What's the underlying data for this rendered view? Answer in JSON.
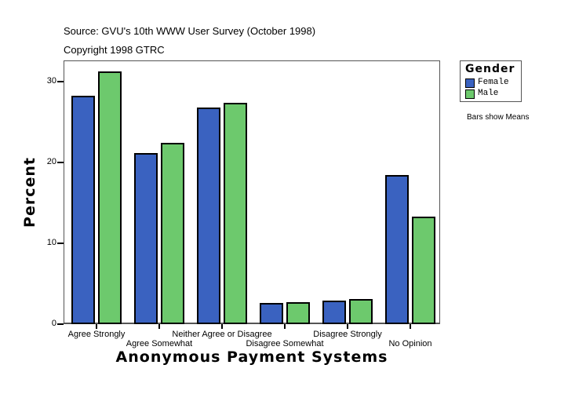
{
  "header": {
    "source": "Source: GVU's 10th WWW User Survey (October 1998)",
    "copyright": "Copyright 1998 GTRC"
  },
  "legend": {
    "title": "Gender",
    "items": [
      {
        "label": "Female",
        "color": "#3a62c0"
      },
      {
        "label": "Male",
        "color": "#6dc96d"
      }
    ],
    "note": "Bars show Means"
  },
  "axes": {
    "ylabel": "Percent",
    "xlabel": "Anonymous Payment Systems",
    "yticks": [
      "0",
      "10",
      "20",
      "30"
    ]
  },
  "chart_data": {
    "type": "bar",
    "title": "",
    "subtitle": "Source: GVU's 10th WWW User Survey (October 1998) / Copyright 1998 GTRC",
    "xlabel": "Anonymous Payment Systems",
    "ylabel": "Percent",
    "ylim": [
      0,
      32.6
    ],
    "yticks": [
      0,
      10,
      20,
      30
    ],
    "grid": false,
    "legend_position": "right",
    "legend_title": "Gender",
    "annotation": "Bars show Means",
    "categories": [
      "Agree Strongly",
      "Agree Somewhat",
      "Neither Agree or Disagree",
      "Disagree Somewhat",
      "Disagree Strongly",
      "No Opinion"
    ],
    "series": [
      {
        "name": "Female",
        "color": "#3a62c0",
        "values": [
          28.3,
          21.2,
          26.8,
          2.6,
          2.9,
          18.4
        ]
      },
      {
        "name": "Male",
        "color": "#6dc96d",
        "values": [
          31.3,
          22.4,
          27.4,
          2.7,
          3.1,
          13.3
        ]
      }
    ]
  }
}
